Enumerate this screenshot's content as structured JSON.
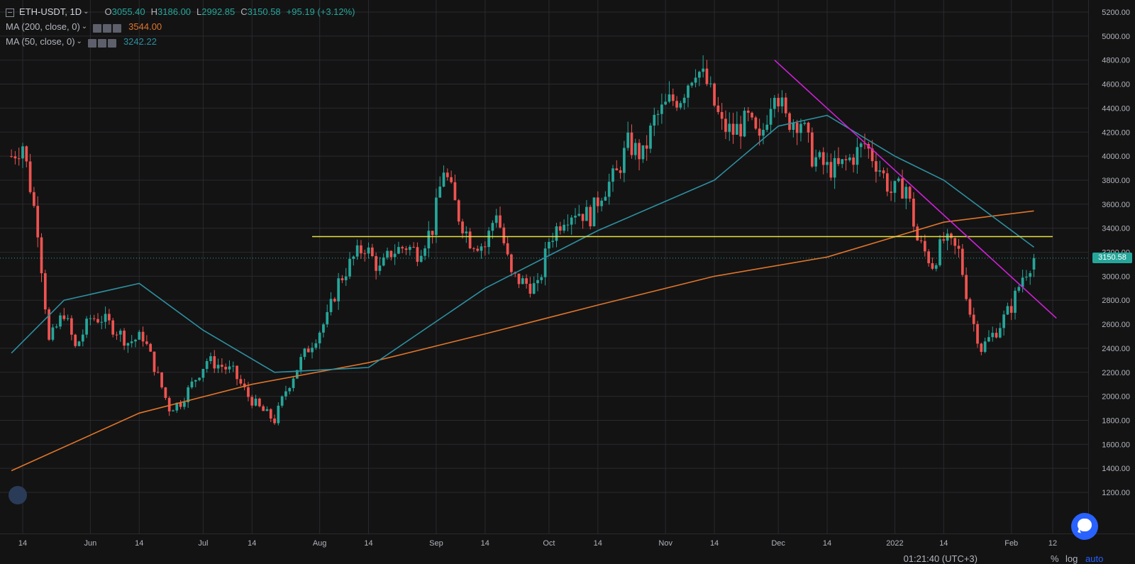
{
  "legend": {
    "symbol": "ETH-USDT, 1D",
    "open_key": "O",
    "open": "3055.40",
    "high_key": "H",
    "high": "3186.00",
    "low_key": "L",
    "low": "2992.85",
    "close_key": "C",
    "close": "3150.58",
    "change": "+95.19 (+3.12%)",
    "ma200_label": "MA (200, close, 0)",
    "ma200_value": "3544.00",
    "ma50_label": "MA (50, close, 0)",
    "ma50_value": "3242.22"
  },
  "colors": {
    "background": "#131313",
    "grid": "#2a2a30",
    "up": "#26a69a",
    "down": "#ef5350",
    "ma200": "#e0752b",
    "ma50": "#2e8fa0",
    "support_line": "#e8e040",
    "trend_line": "#d020d8"
  },
  "price_tag": "3150.58",
  "footer": {
    "clock": "01:21:40 (UTC+3)",
    "percent_btn": "%",
    "log_btn": "log",
    "auto_btn": "auto"
  },
  "icons": {
    "logo": "logo-icon",
    "chat": "chat-icon",
    "legend_toggle": "collapse-icon"
  },
  "chart_data": {
    "type": "candlestick",
    "symbol": "ETH-USDT",
    "timeframe": "1D",
    "ylim": [
      1100,
      5300
    ],
    "y_ticks": [
      1200,
      1400,
      1600,
      1800,
      2000,
      2200,
      2400,
      2600,
      2800,
      3000,
      3200,
      3400,
      3600,
      3800,
      4000,
      4200,
      4400,
      4600,
      4800,
      5000,
      5200
    ],
    "y_tick_labels": [
      "1200.00",
      "1400.00",
      "1600.00",
      "1800.00",
      "2000.00",
      "2200.00",
      "2400.00",
      "2600.00",
      "2800.00",
      "3000.00",
      "3200.00",
      "3400.00",
      "3600.00",
      "3800.00",
      "4000.00",
      "4200.00",
      "4400.00",
      "4600.00",
      "4800.00",
      "5000.00",
      "5200.00"
    ],
    "x_ticks": [
      {
        "date": "2021-05-14",
        "label": "14"
      },
      {
        "date": "2021-06-01",
        "label": "Jun"
      },
      {
        "date": "2021-06-14",
        "label": "14"
      },
      {
        "date": "2021-07-01",
        "label": "Jul"
      },
      {
        "date": "2021-07-14",
        "label": "14"
      },
      {
        "date": "2021-08-01",
        "label": "Aug"
      },
      {
        "date": "2021-08-14",
        "label": "14"
      },
      {
        "date": "2021-09-01",
        "label": "Sep"
      },
      {
        "date": "2021-09-14",
        "label": "14"
      },
      {
        "date": "2021-10-01",
        "label": "Oct"
      },
      {
        "date": "2021-10-14",
        "label": "14"
      },
      {
        "date": "2021-11-01",
        "label": "Nov"
      },
      {
        "date": "2021-11-14",
        "label": "14"
      },
      {
        "date": "2021-12-01",
        "label": "Dec"
      },
      {
        "date": "2021-12-14",
        "label": "14"
      },
      {
        "date": "2022-01-01",
        "label": "2022"
      },
      {
        "date": "2022-01-14",
        "label": "14"
      },
      {
        "date": "2022-02-01",
        "label": "Feb"
      },
      {
        "date": "2022-02-12",
        "label": "12"
      }
    ],
    "ohlc_weekly_anchors": [
      [
        "2021-05-11",
        4000
      ],
      [
        "2021-05-14",
        4100
      ],
      [
        "2021-05-18",
        3400
      ],
      [
        "2021-05-21",
        2450
      ],
      [
        "2021-05-25",
        2700
      ],
      [
        "2021-05-28",
        2400
      ],
      [
        "2021-06-01",
        2650
      ],
      [
        "2021-06-04",
        2650
      ],
      [
        "2021-06-08",
        2550
      ],
      [
        "2021-06-11",
        2450
      ],
      [
        "2021-06-15",
        2500
      ],
      [
        "2021-06-18",
        2250
      ],
      [
        "2021-06-22",
        1900
      ],
      [
        "2021-06-25",
        1950
      ],
      [
        "2021-06-29",
        2150
      ],
      [
        "2021-07-02",
        2300
      ],
      [
        "2021-07-06",
        2250
      ],
      [
        "2021-07-09",
        2200
      ],
      [
        "2021-07-13",
        2000
      ],
      [
        "2021-07-16",
        1900
      ],
      [
        "2021-07-20",
        1800
      ],
      [
        "2021-07-23",
        2050
      ],
      [
        "2021-07-27",
        2300
      ],
      [
        "2021-07-30",
        2450
      ],
      [
        "2021-08-03",
        2650
      ],
      [
        "2021-08-06",
        2950
      ],
      [
        "2021-08-10",
        3150
      ],
      [
        "2021-08-13",
        3250
      ],
      [
        "2021-08-17",
        3050
      ],
      [
        "2021-08-20",
        3200
      ],
      [
        "2021-08-24",
        3250
      ],
      [
        "2021-08-27",
        3200
      ],
      [
        "2021-08-31",
        3400
      ],
      [
        "2021-09-03",
        3900
      ],
      [
        "2021-09-07",
        3500
      ],
      [
        "2021-09-10",
        3300
      ],
      [
        "2021-09-14",
        3250
      ],
      [
        "2021-09-17",
        3550
      ],
      [
        "2021-09-21",
        3000
      ],
      [
        "2021-09-24",
        2950
      ],
      [
        "2021-09-28",
        2900
      ],
      [
        "2021-10-01",
        3300
      ],
      [
        "2021-10-05",
        3500
      ],
      [
        "2021-10-08",
        3550
      ],
      [
        "2021-10-12",
        3500
      ],
      [
        "2021-10-15",
        3700
      ],
      [
        "2021-10-19",
        3850
      ],
      [
        "2021-10-22",
        4100
      ],
      [
        "2021-10-26",
        4000
      ],
      [
        "2021-10-29",
        4300
      ],
      [
        "2021-11-02",
        4450
      ],
      [
        "2021-11-05",
        4500
      ],
      [
        "2021-11-09",
        4750
      ],
      [
        "2021-11-12",
        4600
      ],
      [
        "2021-11-16",
        4250
      ],
      [
        "2021-11-19",
        4200
      ],
      [
        "2021-11-23",
        4300
      ],
      [
        "2021-11-26",
        4100
      ],
      [
        "2021-11-30",
        4600
      ],
      [
        "2021-12-03",
        4300
      ],
      [
        "2021-12-07",
        4300
      ],
      [
        "2021-12-10",
        4000
      ],
      [
        "2021-12-14",
        3900
      ],
      [
        "2021-12-17",
        3900
      ],
      [
        "2021-12-21",
        4000
      ],
      [
        "2021-12-24",
        4100
      ],
      [
        "2021-12-28",
        3900
      ],
      [
        "2021-12-31",
        3700
      ],
      [
        "2022-01-04",
        3750
      ],
      [
        "2022-01-07",
        3300
      ],
      [
        "2022-01-11",
        3100
      ],
      [
        "2022-01-14",
        3300
      ],
      [
        "2022-01-18",
        3200
      ],
      [
        "2022-01-21",
        2700
      ],
      [
        "2022-01-24",
        2400
      ],
      [
        "2022-01-28",
        2550
      ],
      [
        "2022-02-01",
        2750
      ],
      [
        "2022-02-04",
        3000
      ],
      [
        "2022-02-07",
        3150
      ]
    ],
    "ma200_points": [
      [
        "2021-05-11",
        1380
      ],
      [
        "2021-06-14",
        1860
      ],
      [
        "2021-07-14",
        2100
      ],
      [
        "2021-08-14",
        2280
      ],
      [
        "2021-09-14",
        2520
      ],
      [
        "2021-10-14",
        2760
      ],
      [
        "2021-11-14",
        3000
      ],
      [
        "2021-12-14",
        3160
      ],
      [
        "2022-01-14",
        3450
      ],
      [
        "2022-02-07",
        3544
      ]
    ],
    "ma50_points": [
      [
        "2021-05-11",
        2360
      ],
      [
        "2021-05-25",
        2800
      ],
      [
        "2021-06-14",
        2940
      ],
      [
        "2021-07-01",
        2550
      ],
      [
        "2021-07-20",
        2200
      ],
      [
        "2021-08-14",
        2240
      ],
      [
        "2021-09-14",
        2900
      ],
      [
        "2021-10-14",
        3380
      ],
      [
        "2021-11-14",
        3800
      ],
      [
        "2021-12-01",
        4250
      ],
      [
        "2021-12-14",
        4340
      ],
      [
        "2022-01-01",
        4000
      ],
      [
        "2022-01-14",
        3800
      ],
      [
        "2022-02-07",
        3242
      ]
    ],
    "support_level": 3330,
    "support_range": [
      "2021-07-30",
      "2022-02-12"
    ],
    "trend_line": [
      [
        "2021-11-30",
        4800
      ],
      [
        "2022-02-13",
        2650
      ]
    ],
    "last_price": 3150.58
  }
}
